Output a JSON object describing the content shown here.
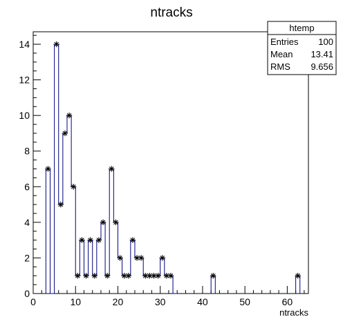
{
  "chart_data": {
    "type": "bar",
    "title": "ntracks",
    "xlabel": "ntracks",
    "ylabel": "",
    "xlim": [
      0,
      65
    ],
    "ylim": [
      0,
      14.7
    ],
    "x_ticks": [
      0,
      10,
      20,
      30,
      40,
      50,
      60
    ],
    "y_ticks": [
      0,
      2,
      4,
      6,
      8,
      10,
      12,
      14
    ],
    "bin_width": 1,
    "line_color": "#000080",
    "marker": "asterisk",
    "series": [
      {
        "x": [
          3,
          4,
          5,
          6,
          7,
          8,
          9,
          10,
          11,
          12,
          13,
          14,
          15,
          16,
          17,
          18,
          19,
          20,
          21,
          22,
          23,
          24,
          25,
          26,
          27,
          28,
          29,
          30,
          31,
          32,
          33,
          42,
          62
        ],
        "values": [
          7,
          0,
          14,
          5,
          9,
          10,
          6,
          1,
          3,
          1,
          3,
          1,
          3,
          4,
          1,
          7,
          4,
          2,
          1,
          1,
          3,
          2,
          2,
          1,
          1,
          1,
          1,
          2,
          1,
          1,
          0,
          1,
          1
        ]
      }
    ],
    "stats_box": {
      "title": "htemp",
      "rows": [
        {
          "label": "Entries",
          "value": "100"
        },
        {
          "label": "Mean",
          "value": "13.41"
        },
        {
          "label": "RMS",
          "value": "9.656"
        }
      ]
    }
  }
}
